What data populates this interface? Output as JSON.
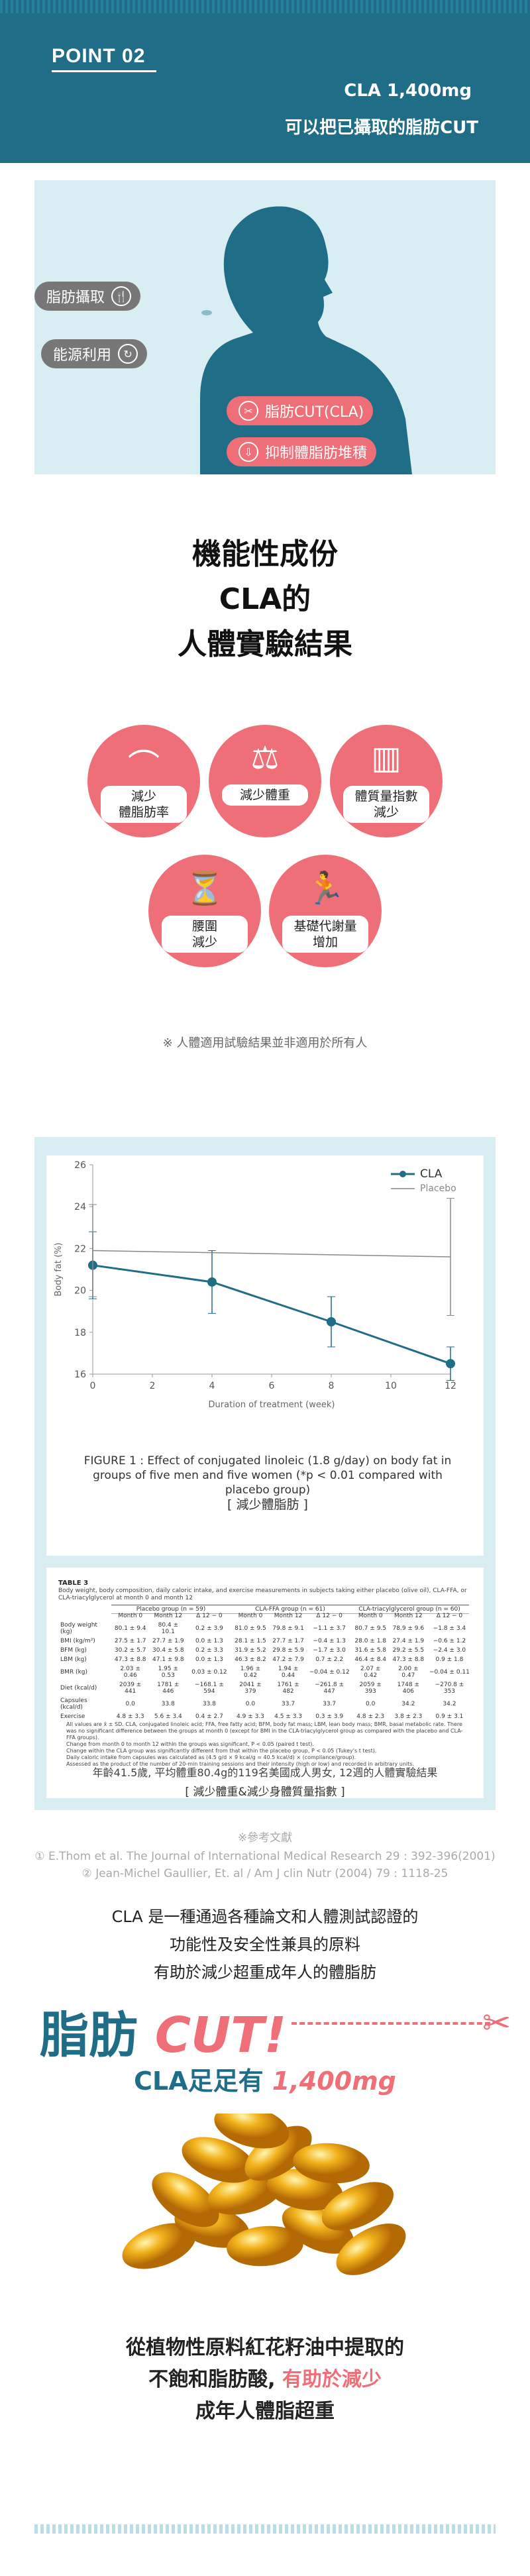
{
  "header": {
    "point": "POINT 02",
    "line1": "CLA 1,400mg",
    "line2": "可以把已攝取的脂肪CUT"
  },
  "body_tags": {
    "intake": "脂肪攝取",
    "energy": "能源利用",
    "cut": "脂肪CUT(CLA)",
    "inhibit": "抑制體脂肪堆積"
  },
  "title": {
    "l1": "機能性成份",
    "l2": "CLA的",
    "l3": "人體實驗結果"
  },
  "results": [
    {
      "label1": "減少",
      "label2": "體脂肪率"
    },
    {
      "label1": "減少體重",
      "label2": ""
    },
    {
      "label1": "體質量指數",
      "label2": "減少"
    },
    {
      "label1": "腰圍",
      "label2": "減少"
    },
    {
      "label1": "基礎代謝量",
      "label2": "增加"
    }
  ],
  "note": "※ 人體適用試驗結果並非適用於所有人",
  "chart_data": {
    "type": "line",
    "x": [
      0,
      2,
      4,
      6,
      8,
      10,
      12
    ],
    "xlabel": "Duration of treatment (week)",
    "ylabel": "Body fat (%)",
    "ylim": [
      16,
      26
    ],
    "yticks": [
      16,
      18,
      20,
      22,
      24,
      26
    ],
    "series": [
      {
        "name": "CLA",
        "x": [
          0,
          4,
          8,
          12
        ],
        "values": [
          21.2,
          20.4,
          18.5,
          16.5
        ],
        "err": [
          1.6,
          1.5,
          1.2,
          0.8
        ],
        "color": "#1f6d86"
      },
      {
        "name": "Placebo",
        "x": [
          0,
          12
        ],
        "values": [
          21.9,
          21.6
        ],
        "err": [
          2.2,
          2.8
        ],
        "color": "#888888"
      }
    ]
  },
  "figure": {
    "caption": "FIGURE 1 : Effect of conjugated linoleic (1.8 g/day) on body fat in groups of five men and five women (*p < 0.01 compared with placebo group)",
    "label": "[ 減少體脂肪 ]"
  },
  "table": {
    "title": "TABLE 3",
    "desc": "Body weight, body composition, daily caloric intake, and exercise measurements in subjects taking either placebo (olive oil), CLA-FFA, or CLA-triacylglycerol at month 0 and month 12",
    "groups": [
      "Placebo group (n = 59)",
      "CLA-FFA group (n = 61)",
      "CLA-triacylglycerol group (n = 60)"
    ],
    "cols": [
      "Month 0",
      "Month 12",
      "Δ 12 − 0",
      "Month 0",
      "Month 12",
      "Δ 12 − 0",
      "Month 0",
      "Month 12",
      "Δ 12 − 0"
    ],
    "rows": [
      [
        "Body weight (kg)",
        "80.1 ± 9.4",
        "80.4 ± 10.1",
        "0.2 ± 3.9",
        "81.0 ± 9.5",
        "79.8 ± 9.1",
        "−1.1 ± 3.7",
        "80.7 ± 9.5",
        "78.9 ± 9.6",
        "−1.8 ± 3.4"
      ],
      [
        "BMI (kg/m²)",
        "27.5 ± 1.7",
        "27.7 ± 1.9",
        "0.0 ± 1.3",
        "28.1 ± 1.5",
        "27.7 ± 1.7",
        "−0.4 ± 1.3",
        "28.0 ± 1.8",
        "27.4 ± 1.9",
        "−0.6 ± 1.2"
      ],
      [
        "BFM (kg)",
        "30.2 ± 5.7",
        "30.4 ± 5.8",
        "0.2 ± 3.3",
        "31.9 ± 5.2",
        "29.8 ± 5.9",
        "−1.7 ± 3.0",
        "31.6 ± 5.8",
        "29.2 ± 5.5",
        "−2.4 ± 3.0"
      ],
      [
        "LBM (kg)",
        "47.3 ± 8.8",
        "47.1 ± 9.8",
        "0.0 ± 1.3",
        "46.3 ± 8.2",
        "47.2 ± 7.9",
        "0.7 ± 2.2",
        "46.4 ± 8.4",
        "47.3 ± 8.8",
        "0.9 ± 1.8"
      ],
      [
        "BMR (kg)",
        "2.03 ± 0.46",
        "1.95 ± 0.53",
        "0.03 ± 0.12",
        "1.96 ± 0.42",
        "1.94 ± 0.44",
        "−0.04 ± 0.12",
        "2.07 ± 0.42",
        "2.00 ± 0.47",
        "−0.04 ± 0.11"
      ],
      [
        "Diet (kcal/d)",
        "2039 ± 441",
        "1781 ± 446",
        "−168.1 ± 594",
        "2041 ± 379",
        "1761 ± 482",
        "−261.8 ± 447",
        "2059 ± 393",
        "1748 ± 406",
        "−270.8 ± 353"
      ],
      [
        "Capsules (kcal/d)",
        "0.0",
        "33.8",
        "33.8",
        "0.0",
        "33.7",
        "33.7",
        "0.0",
        "34.2",
        "34.2"
      ],
      [
        "Exercise",
        "4.8 ± 3.3",
        "5.6 ± 3.4",
        "0.4 ± 2.7",
        "4.9 ± 3.3",
        "4.5 ± 3.3",
        "0.3 ± 3.9",
        "4.8 ± 2.3",
        "3.8 ± 2.3",
        "0.9 ± 3.1"
      ]
    ],
    "footnotes": [
      "All values are x̄ ± SD. CLA, conjugated linoleic acid; FFA, free fatty acid; BFM, body fat mass; LBM, lean body mass; BMR, basal metabolic rate. There was no significant difference between the groups at month 0 (except for BMI in the CLA-triacylglycerol group as compared with the placebo and CLA-FFA groups).",
      "Change from month 0 to month 12 within the groups was significant, P < 0.05 (paired t test).",
      "Change within the CLA group was significantly different from that within the placebo group, P < 0.05 (Tukey's t test).",
      "Daily caloric intake from capsules was calculated as (4.5 g/d × 9 kcal/g = 40.5 kcal/d) × (compliance/group).",
      "Assessed as the product of the number of 20-min training sessions and their intensity (high or low) and recorded in arbitrary units."
    ],
    "summary": "年齡41.5歲, 平均體重80.4g的119名美國成人男女, 12週的人體實驗結果",
    "label": "[ 減少體重&減少身體質量指數 ]"
  },
  "references": {
    "head": "※參考文獻",
    "r1": "① E.Thom et al. The Journal of International Medical Research 29 : 392-396(2001)",
    "r2": "② Jean-Michel Gaullier, Et. al / Am J clin Nutr (2004) 79 : 1118-25"
  },
  "description": {
    "l1": "CLA 是一種通過各種論文和人體測試認證的",
    "l2": "功能性及安全性兼具的原料",
    "l3": "有助於減少超重成年人的體脂肪"
  },
  "cut": {
    "word": "脂肪",
    "cut": "CUT!",
    "sub": "CLA足足有",
    "amount": "1,400mg"
  },
  "final": {
    "l1": "從植物性原料紅花籽油中提取的",
    "l2a": "不飽和脂肪酸, ",
    "l2b": "有助於減少",
    "l3": "成年人體脂超重"
  },
  "colors": {
    "teal": "#1f6d86",
    "pink": "#ee6f78",
    "lightblue": "#d9eef2"
  }
}
